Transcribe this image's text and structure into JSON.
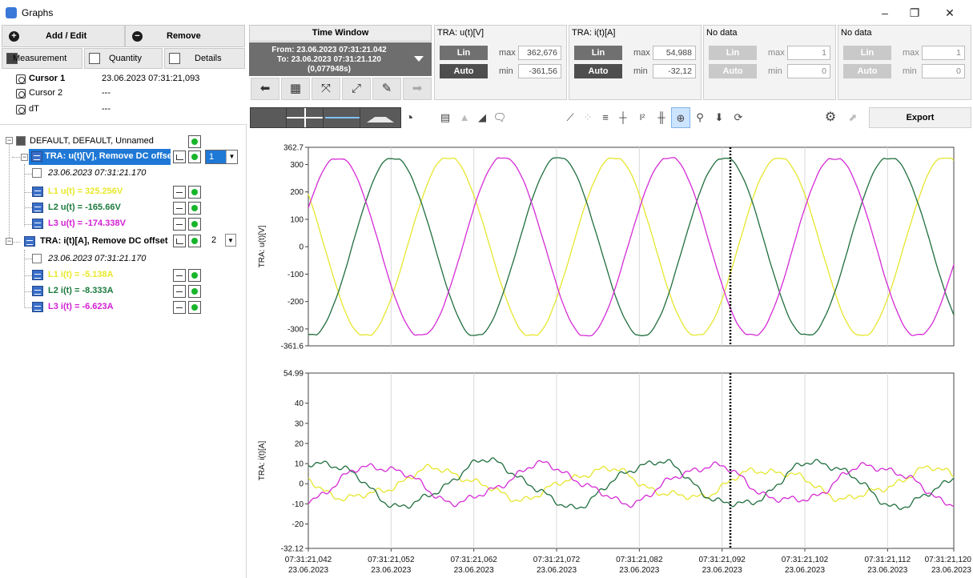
{
  "window": {
    "title": "Graphs",
    "minimize": "–",
    "restore": "❐",
    "close": "✕"
  },
  "left_panel": {
    "add_edit": "Add / Edit",
    "remove": "Remove",
    "tabs": {
      "measurement": "Measurement",
      "quantity": "Quantity",
      "details": "Details"
    },
    "cursors": [
      {
        "name": "Cursor 1",
        "value": "23.06.2023 07:31:21,093"
      },
      {
        "name": "Cursor 2",
        "value": "---"
      },
      {
        "name": "dT",
        "value": "---"
      }
    ]
  },
  "tree": {
    "root": "DEFAULT, DEFAULT, Unnamed",
    "groups": [
      {
        "label": "TRA: u(t)[V], Remove DC offse",
        "selected": true,
        "spin_value": "1",
        "timestamp": "23.06.2023 07:31:21.170",
        "children": [
          {
            "label": "L1 u(t) = 325.256V",
            "color": "#e8e82a"
          },
          {
            "label": "L2 u(t) = -165.66V",
            "color": "#1a7a3c"
          },
          {
            "label": "L3 u(t) = -174.338V",
            "color": "#d21ed2"
          }
        ]
      },
      {
        "label": "TRA: i(t)[A], Remove DC offset",
        "selected": false,
        "spin_value": "2",
        "timestamp": "23.06.2023 07:31:21.170",
        "children": [
          {
            "label": "L1 i(t) = -5.138A",
            "color": "#e8e82a"
          },
          {
            "label": "L2 i(t) = -8.333A",
            "color": "#1a7a3c"
          },
          {
            "label": "L3 i(t) = -6.623A",
            "color": "#d21ed2"
          }
        ]
      }
    ]
  },
  "time_window": {
    "title": "Time Window",
    "from": "From: 23.06.2023 07:31:21.042",
    "to": "To: 23.06.2023 07:31:21.120",
    "duration": "(0,077948s)"
  },
  "channels": [
    {
      "title": "TRA: u(t)[V]",
      "lin": "Lin",
      "auto": "Auto",
      "max_label": "max",
      "max": "362,676",
      "min_label": "min",
      "min": "-361,56",
      "enabled": true
    },
    {
      "title": "TRA: i(t)[A]",
      "lin": "Lin",
      "auto": "Auto",
      "max_label": "max",
      "max": "54,988",
      "min_label": "min",
      "min": "-32,12",
      "enabled": true
    },
    {
      "title": "No data",
      "lin": "Lin",
      "auto": "Auto",
      "max_label": "max",
      "max": "1",
      "min_label": "min",
      "min": "0",
      "enabled": false
    },
    {
      "title": "No data",
      "lin": "Lin",
      "auto": "Auto",
      "max_label": "max",
      "max": "1",
      "min_label": "min",
      "min": "0",
      "enabled": false
    }
  ],
  "toolbar": {
    "export": "Export"
  },
  "colors": {
    "L1": "#e6e62e",
    "L2": "#1f6e3e",
    "L3": "#d52bd5",
    "cursor": "#000000"
  },
  "chart_data": [
    {
      "type": "line",
      "ylabel": "TRA: u(t)[V]",
      "ylim": [
        -361.6,
        362.7
      ],
      "ytick_labels": [
        "362.7",
        "300",
        "200",
        "100",
        "0",
        "-100",
        "-200",
        "-300",
        "-361.6"
      ],
      "yticks": [
        362.7,
        300,
        200,
        100,
        0,
        -100,
        -200,
        -300,
        -361.6
      ],
      "xlim": [
        0,
        0.078
      ],
      "cursor_x": 0.051,
      "series": [
        {
          "name": "L1 u(t)",
          "color": "#e6e62e",
          "amplitude": 330,
          "phase_deg": 145,
          "clip": 322
        },
        {
          "name": "L2 u(t)",
          "color": "#1f6e3e",
          "amplitude": 330,
          "phase_deg": 265,
          "clip": 322
        },
        {
          "name": "L3 u(t)",
          "color": "#d52bd5",
          "amplitude": 330,
          "phase_deg": 25,
          "clip": 322
        }
      ]
    },
    {
      "type": "line",
      "ylabel": "TRA: i(t)[A]",
      "ylim": [
        -32.12,
        54.99
      ],
      "ytick_labels": [
        "54.99",
        "40",
        "30",
        "20",
        "10",
        "0",
        "-10",
        "-20",
        "-32.12"
      ],
      "yticks": [
        54.99,
        40,
        30,
        20,
        10,
        0,
        -10,
        -20,
        -32.12
      ],
      "xlim": [
        0,
        0.078
      ],
      "cursor_x": 0.051,
      "x_tick_labels": [
        {
          "time": "07:31:21,042",
          "date": "23.06.2023"
        },
        {
          "time": "07:31:21,052",
          "date": "23.06.2023"
        },
        {
          "time": "07:31:21,062",
          "date": "23.06.2023"
        },
        {
          "time": "07:31:21,072",
          "date": "23.06.2023"
        },
        {
          "time": "07:31:21,082",
          "date": "23.06.2023"
        },
        {
          "time": "07:31:21,092",
          "date": "23.06.2023"
        },
        {
          "time": "07:31:21,102",
          "date": "23.06.2023"
        },
        {
          "time": "07:31:21,112",
          "date": "23.06.2023"
        },
        {
          "time": "07:31:21,120",
          "date": "23.06.2023"
        }
      ],
      "xticks": [
        0,
        0.01,
        0.02,
        0.03,
        0.04,
        0.05,
        0.06,
        0.07,
        0.078
      ],
      "series": [
        {
          "name": "L1 i(t)",
          "color": "#e6e62e",
          "amplitude": 7,
          "phase_deg": 170
        },
        {
          "name": "L2 i(t)",
          "color": "#1f6e3e",
          "amplitude": 11,
          "phase_deg": 60
        },
        {
          "name": "L3 i(t)",
          "color": "#d52bd5",
          "amplitude": 9,
          "phase_deg": 300
        }
      ]
    }
  ]
}
